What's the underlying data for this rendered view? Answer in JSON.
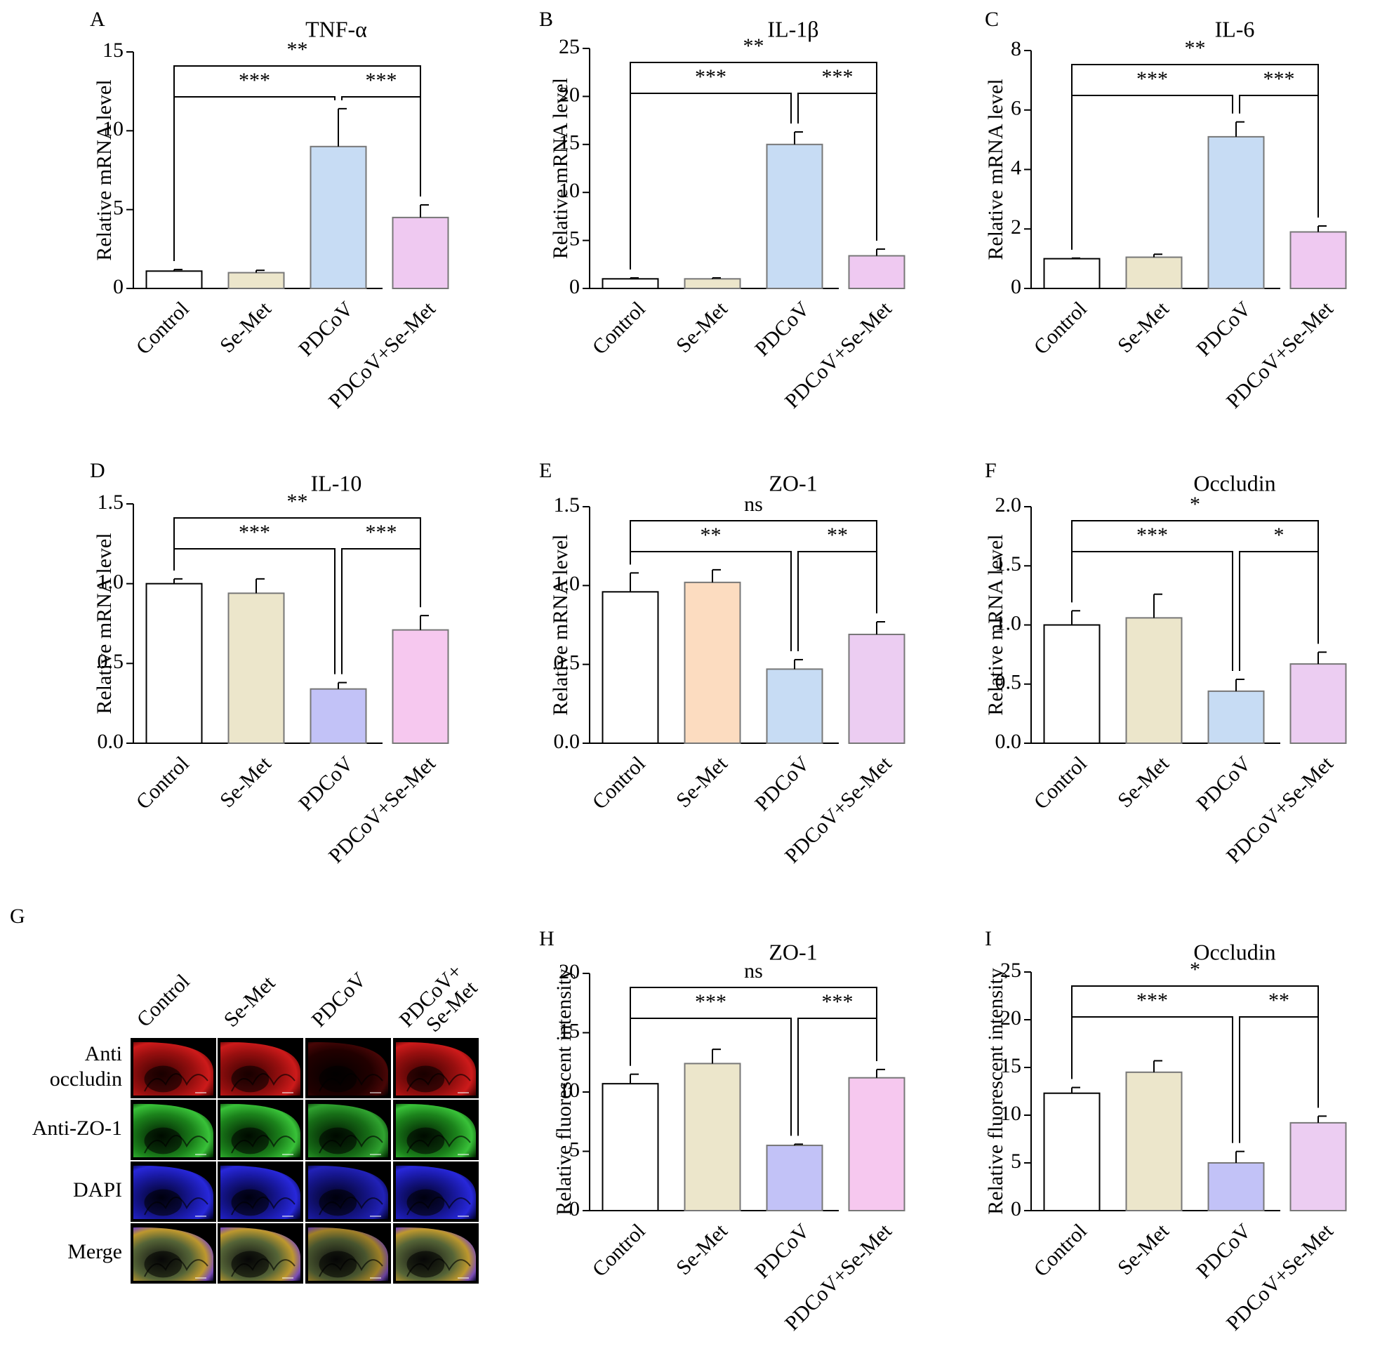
{
  "categories": [
    "Control",
    "Se-Met",
    "PDCoV",
    "PDCoV+Se-Met"
  ],
  "chart_data": [
    {
      "panel": "A",
      "type": "bar",
      "title": "TNF-α",
      "ylabel": "Relative mRNA level",
      "ylim": [
        0,
        15
      ],
      "yticks": [
        "0",
        "5",
        "10",
        "15"
      ],
      "categories": [
        "Control",
        "Se-Met",
        "PDCoV",
        "PDCoV+Se-Met"
      ],
      "values": [
        1.1,
        1.0,
        9.0,
        4.5
      ],
      "errors": [
        0.1,
        0.15,
        2.4,
        0.8
      ],
      "colors": [
        "#ffffff",
        "#ece6cb",
        "#c7dcf4",
        "#efc9f1"
      ],
      "significance": [
        {
          "from": 0,
          "to": 3,
          "label": "**"
        },
        {
          "from": 0,
          "to": 2,
          "label": "***"
        },
        {
          "from": 2,
          "to": 3,
          "label": "***"
        }
      ]
    },
    {
      "panel": "B",
      "type": "bar",
      "title": "IL-1β",
      "ylabel": "Relative mRNA level",
      "ylim": [
        0,
        25
      ],
      "yticks": [
        "0",
        "5",
        "10",
        "15",
        "20",
        "25"
      ],
      "categories": [
        "Control",
        "Se-Met",
        "PDCoV",
        "PDCoV+Se-Met"
      ],
      "values": [
        1.0,
        1.0,
        15.0,
        3.4
      ],
      "errors": [
        0.1,
        0.1,
        1.3,
        0.7
      ],
      "colors": [
        "#ffffff",
        "#ece6cb",
        "#c7dcf4",
        "#efc9f1"
      ],
      "significance": [
        {
          "from": 0,
          "to": 3,
          "label": "**"
        },
        {
          "from": 0,
          "to": 2,
          "label": "***"
        },
        {
          "from": 2,
          "to": 3,
          "label": "***"
        }
      ]
    },
    {
      "panel": "C",
      "type": "bar",
      "title": "IL-6",
      "ylabel": "Relative mRNA level",
      "ylim": [
        0,
        8
      ],
      "yticks": [
        "0",
        "2",
        "4",
        "6",
        "8"
      ],
      "categories": [
        "Control",
        "Se-Met",
        "PDCoV",
        "PDCoV+Se-Met"
      ],
      "values": [
        1.0,
        1.05,
        5.1,
        1.9
      ],
      "errors": [
        0.02,
        0.1,
        0.5,
        0.2
      ],
      "colors": [
        "#ffffff",
        "#ece6cb",
        "#c7dcf4",
        "#efc9f1"
      ],
      "significance": [
        {
          "from": 0,
          "to": 3,
          "label": "**"
        },
        {
          "from": 0,
          "to": 2,
          "label": "***"
        },
        {
          "from": 2,
          "to": 3,
          "label": "***"
        }
      ]
    },
    {
      "panel": "D",
      "type": "bar",
      "title": "IL-10",
      "ylabel": "Relative mRNA level",
      "ylim": [
        0,
        1.5
      ],
      "yticks": [
        "0.0",
        "0.5",
        "1.0",
        "1.5"
      ],
      "categories": [
        "Control",
        "Se-Met",
        "PDCoV",
        "PDCoV+Se-Met"
      ],
      "values": [
        1.0,
        0.94,
        0.34,
        0.71
      ],
      "errors": [
        0.03,
        0.09,
        0.04,
        0.09
      ],
      "colors": [
        "#ffffff",
        "#ece6cb",
        "#c2c2f7",
        "#f6c8ef"
      ],
      "significance": [
        {
          "from": 0,
          "to": 3,
          "label": "**"
        },
        {
          "from": 0,
          "to": 2,
          "label": "***"
        },
        {
          "from": 2,
          "to": 3,
          "label": "***"
        }
      ]
    },
    {
      "panel": "E",
      "type": "bar",
      "title": "ZO-1",
      "ylabel": "Relative mRNA level",
      "ylim": [
        0,
        1.5
      ],
      "yticks": [
        "0.0",
        "0.5",
        "1.0",
        "1.5"
      ],
      "categories": [
        "Control",
        "Se-Met",
        "PDCoV",
        "PDCoV+Se-Met"
      ],
      "values": [
        0.96,
        1.02,
        0.47,
        0.69
      ],
      "errors": [
        0.12,
        0.08,
        0.06,
        0.08
      ],
      "colors": [
        "#ffffff",
        "#fcdcc0",
        "#c7dcf4",
        "#eccdf2"
      ],
      "significance": [
        {
          "from": 0,
          "to": 3,
          "label": "ns"
        },
        {
          "from": 0,
          "to": 2,
          "label": "**"
        },
        {
          "from": 2,
          "to": 3,
          "label": "**"
        }
      ]
    },
    {
      "panel": "F",
      "type": "bar",
      "title": "Occludin",
      "ylabel": "Relative mRNA level",
      "ylim": [
        0,
        2.0
      ],
      "yticks": [
        "0.0",
        "0.5",
        "1.0",
        "1.5",
        "2.0"
      ],
      "categories": [
        "Control",
        "Se-Met",
        "PDCoV",
        "PDCoV+Se-Met"
      ],
      "values": [
        1.0,
        1.06,
        0.44,
        0.67
      ],
      "errors": [
        0.12,
        0.2,
        0.1,
        0.1
      ],
      "colors": [
        "#ffffff",
        "#ece6cb",
        "#c7dcf4",
        "#eccdf2"
      ],
      "significance": [
        {
          "from": 0,
          "to": 3,
          "label": "*"
        },
        {
          "from": 0,
          "to": 2,
          "label": "***"
        },
        {
          "from": 2,
          "to": 3,
          "label": "*"
        }
      ]
    },
    {
      "panel": "H",
      "type": "bar",
      "title": "ZO-1",
      "ylabel": "Relative fluorescent intensity",
      "ylim": [
        0,
        20
      ],
      "yticks": [
        "0",
        "5",
        "10",
        "15",
        "20"
      ],
      "categories": [
        "Control",
        "Se-Met",
        "PDCoV",
        "PDCoV+Se-Met"
      ],
      "values": [
        10.7,
        12.4,
        5.5,
        11.2
      ],
      "errors": [
        0.8,
        1.2,
        0.1,
        0.7
      ],
      "colors": [
        "#ffffff",
        "#ece6cb",
        "#c2c2f7",
        "#f6c8ef"
      ],
      "significance": [
        {
          "from": 0,
          "to": 3,
          "label": "ns"
        },
        {
          "from": 0,
          "to": 2,
          "label": "***"
        },
        {
          "from": 2,
          "to": 3,
          "label": "***"
        }
      ]
    },
    {
      "panel": "I",
      "type": "bar",
      "title": "Occludin",
      "ylabel": "Relative fluorescent intensity",
      "ylim": [
        0,
        25
      ],
      "yticks": [
        "0",
        "5",
        "10",
        "15",
        "20",
        "25"
      ],
      "categories": [
        "Control",
        "Se-Met",
        "PDCoV",
        "PDCoV+Se-Met"
      ],
      "values": [
        12.3,
        14.5,
        5.0,
        9.2
      ],
      "errors": [
        0.6,
        1.2,
        1.2,
        0.7
      ],
      "colors": [
        "#ffffff",
        "#ece6cb",
        "#c2c2f7",
        "#eccdf2"
      ],
      "significance": [
        {
          "from": 0,
          "to": 3,
          "label": "*"
        },
        {
          "from": 0,
          "to": 2,
          "label": "***"
        },
        {
          "from": 2,
          "to": 3,
          "label": "**"
        }
      ]
    }
  ],
  "panel_g": {
    "label": "G",
    "columns": [
      "Control",
      "Se-Met",
      "PDCoV",
      "PDCoV+\nSe-Met"
    ],
    "rows": [
      {
        "label": "Anti\noccludin",
        "channel": "red"
      },
      {
        "label": "Anti-ZO-1",
        "channel": "green"
      },
      {
        "label": "DAPI",
        "channel": "blue"
      },
      {
        "label": "Merge",
        "channel": "merge"
      }
    ]
  },
  "colors": {
    "axis": "#000000",
    "bar_stroke": "#555555",
    "micro_red": "#c0141a",
    "micro_green": "#2db52d",
    "micro_blue": "#2020d8"
  }
}
